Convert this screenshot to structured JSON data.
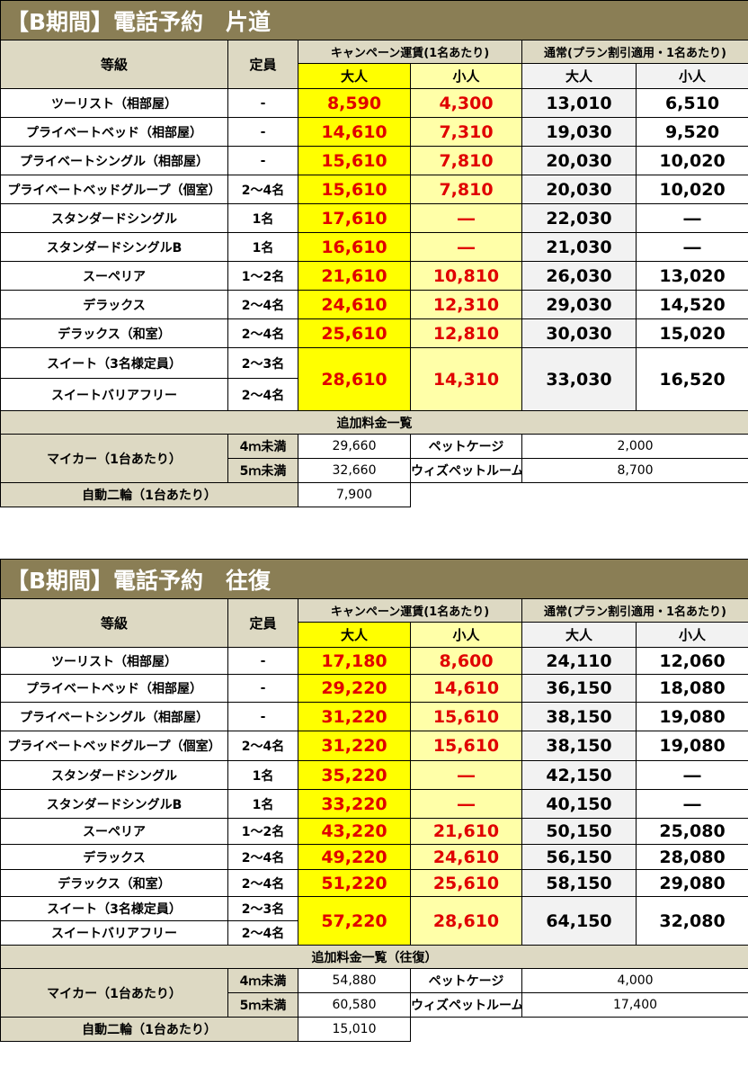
{
  "tables": [
    {
      "title": "【B期間】電話予約　片道",
      "headers": {
        "grade": "等級",
        "capacity": "定員",
        "campaign": "キャンペーン運賃(1名あたり)",
        "normal": "通常(プラン割引適用・1名あたり)",
        "adult": "大人",
        "child": "小人"
      },
      "rows": [
        {
          "name": "ツーリスト（相部屋）",
          "cap": "-",
          "ca": "8,590",
          "cc": "4,300",
          "na": "13,010",
          "nc": "6,510"
        },
        {
          "name": "プライベートベッド（相部屋）",
          "cap": "-",
          "ca": "14,610",
          "cc": "7,310",
          "na": "19,030",
          "nc": "9,520"
        },
        {
          "name": "プライベートシングル（相部屋）",
          "cap": "-",
          "ca": "15,610",
          "cc": "7,810",
          "na": "20,030",
          "nc": "10,020"
        },
        {
          "name": "プライベートベッドグループ（個室）",
          "cap": "2～4名",
          "ca": "15,610",
          "cc": "7,810",
          "na": "20,030",
          "nc": "10,020"
        },
        {
          "name": "スタンダードシングル",
          "cap": "1名",
          "ca": "17,610",
          "cc": "―",
          "na": "22,030",
          "nc": "―"
        },
        {
          "name": "スタンダードシングルB",
          "cap": "1名",
          "ca": "16,610",
          "cc": "―",
          "na": "21,030",
          "nc": "―"
        },
        {
          "name": "スーペリア",
          "cap": "1～2名",
          "ca": "21,610",
          "cc": "10,810",
          "na": "26,030",
          "nc": "13,020"
        },
        {
          "name": "デラックス",
          "cap": "2～4名",
          "ca": "24,610",
          "cc": "12,310",
          "na": "29,030",
          "nc": "14,520"
        },
        {
          "name": "デラックス（和室）",
          "cap": "2～4名",
          "ca": "25,610",
          "cc": "12,810",
          "na": "30,030",
          "nc": "15,020"
        }
      ],
      "suite": {
        "name1": "スイート（3名様定員）",
        "cap1": "2～3名",
        "name2": "スイートバリアフリー",
        "cap2": "2～4名",
        "ca": "28,610",
        "cc": "14,310",
        "na": "33,030",
        "nc": "16,520"
      },
      "extras": {
        "title": "追加料金一覧",
        "car_label": "マイカー（1台あたり）",
        "car_under": "4ｍ未満",
        "car_under_price": "29,660",
        "car_over": "5ｍ未満",
        "car_over_price": "32,660",
        "pet_cage": "ペットケージ",
        "pet_cage_price": "2,000",
        "pet_room": "ウィズペットルーム",
        "pet_room_price": "8,700",
        "bike_label": "自動二輪（1台あたり）",
        "bike_price": "7,900"
      }
    },
    {
      "title": "【B期間】電話予約　往復",
      "headers": {
        "grade": "等級",
        "capacity": "定員",
        "campaign": "キャンペーン運賃(1名あたり)",
        "normal": "通常(プラン割引適用・1名あたり)",
        "adult": "大人",
        "child": "小人"
      },
      "rows": [
        {
          "name": "ツーリスト（相部屋）",
          "cap": "-",
          "ca": "17,180",
          "cc": "8,600",
          "na": "24,110",
          "nc": "12,060"
        },
        {
          "name": "プライベートベッド（相部屋）",
          "cap": "-",
          "ca": "29,220",
          "cc": "14,610",
          "na": "36,150",
          "nc": "18,080"
        },
        {
          "name": "プライベートシングル（相部屋）",
          "cap": "-",
          "ca": "31,220",
          "cc": "15,610",
          "na": "38,150",
          "nc": "19,080"
        },
        {
          "name": "プライベートベッドグループ（個室）",
          "cap": "2～4名",
          "ca": "31,220",
          "cc": "15,610",
          "na": "38,150",
          "nc": "19,080"
        },
        {
          "name": "スタンダードシングル",
          "cap": "1名",
          "ca": "35,220",
          "cc": "―",
          "na": "42,150",
          "nc": "―"
        },
        {
          "name": "スタンダードシングルB",
          "cap": "1名",
          "ca": "33,220",
          "cc": "―",
          "na": "40,150",
          "nc": "―"
        },
        {
          "name": "スーペリア",
          "cap": "1～2名",
          "ca": "43,220",
          "cc": "21,610",
          "na": "50,150",
          "nc": "25,080"
        },
        {
          "name": "デラックス",
          "cap": "2～4名",
          "ca": "49,220",
          "cc": "24,610",
          "na": "56,150",
          "nc": "28,080"
        },
        {
          "name": "デラックス（和室）",
          "cap": "2～4名",
          "ca": "51,220",
          "cc": "25,610",
          "na": "58,150",
          "nc": "29,080"
        }
      ],
      "suite": {
        "name1": "スイート（3名様定員）",
        "cap1": "2～3名",
        "name2": "スイートバリアフリー",
        "cap2": "2～4名",
        "ca": "57,220",
        "cc": "28,610",
        "na": "64,150",
        "nc": "32,080"
      },
      "extras": {
        "title": "追加料金一覧（往復）",
        "car_label": "マイカー（1台あたり）",
        "car_under": "4ｍ未満",
        "car_under_price": "54,880",
        "car_over": "5ｍ未満",
        "car_over_price": "60,580",
        "pet_cage": "ペットケージ",
        "pet_cage_price": "4,000",
        "pet_room": "ウィズペットルーム",
        "pet_room_price": "17,400",
        "bike_label": "自動二輪（1台あたり）",
        "bike_price": "15,010"
      }
    }
  ]
}
